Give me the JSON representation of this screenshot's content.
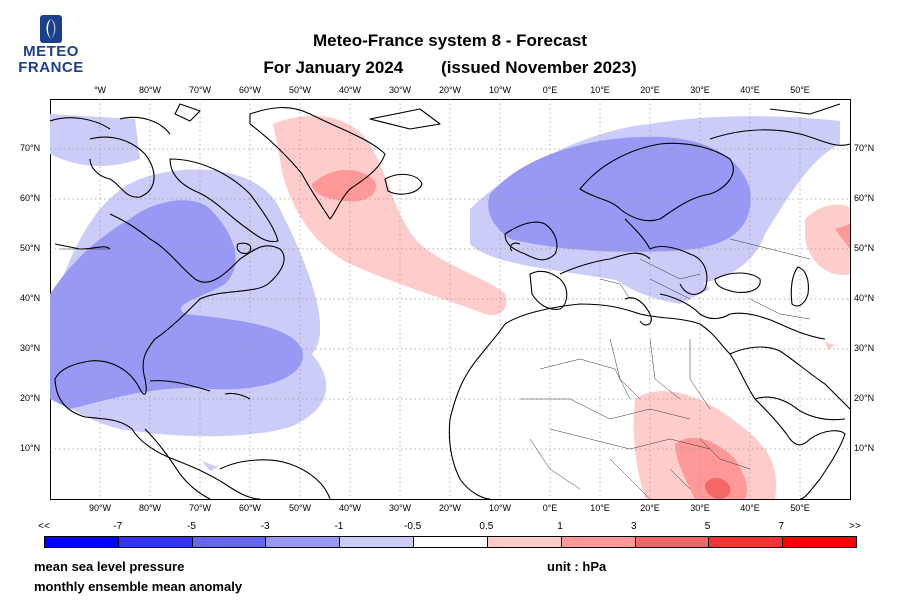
{
  "logo": {
    "line1": "METEO",
    "line2": "FRANCE"
  },
  "title": {
    "line1": "Meteo-France system 8  -  Forecast",
    "line2_left": "For January 2024",
    "line2_right": "(issued November 2023)"
  },
  "map": {
    "projection": "equirectangular",
    "lon_range": [
      -100,
      60
    ],
    "lat_range": [
      0,
      80
    ],
    "lon_ticks": [
      "°W",
      "80°W",
      "70°W",
      "60°W",
      "50°W",
      "40°W",
      "30°W",
      "20°W",
      "10°W",
      "0°E",
      "10°E",
      "20°E",
      "30°E",
      "40°E",
      "50°E"
    ],
    "lon_ticks_bottom": [
      "90°W",
      "80°W",
      "70°W",
      "60°W",
      "50°W",
      "40°W",
      "30°W",
      "20°W",
      "10°W",
      "0°E",
      "10°E",
      "20°E",
      "30°E",
      "40°E",
      "50°E"
    ],
    "lat_ticks": [
      "70°N",
      "60°N",
      "50°N",
      "40°N",
      "30°N",
      "20°N",
      "10°N"
    ],
    "grid": "dotted",
    "anomaly_regions": [
      {
        "name": "North America / NW Atlantic low",
        "sign": "negative",
        "level": "-3 to -1"
      },
      {
        "name": "Northern Europe / Scandinavia low",
        "sign": "negative",
        "level": "-3 to -1"
      },
      {
        "name": "Greenland–Iberia ridge",
        "sign": "positive",
        "level": "0.5 to 3"
      },
      {
        "name": "East Africa",
        "sign": "positive",
        "level": "0.5 to 5"
      },
      {
        "name": "Caspian region",
        "sign": "positive",
        "level": "0.5 to 1"
      }
    ]
  },
  "colorbar": {
    "labels": [
      "<<",
      "-7",
      "-5",
      "-3",
      "-1",
      "-0.5",
      "0.5",
      "1",
      "3",
      "5",
      "7",
      ">>"
    ],
    "colors": [
      "#0000ff",
      "#3333f5",
      "#6666f0",
      "#9999f5",
      "#ccccf8",
      "#ffffff",
      "#ffcccc",
      "#ff9999",
      "#f56666",
      "#f53333",
      "#ff0000"
    ]
  },
  "footer": {
    "variable": "mean sea level pressure",
    "description": "monthly ensemble mean anomaly",
    "unit": "unit : hPa"
  }
}
